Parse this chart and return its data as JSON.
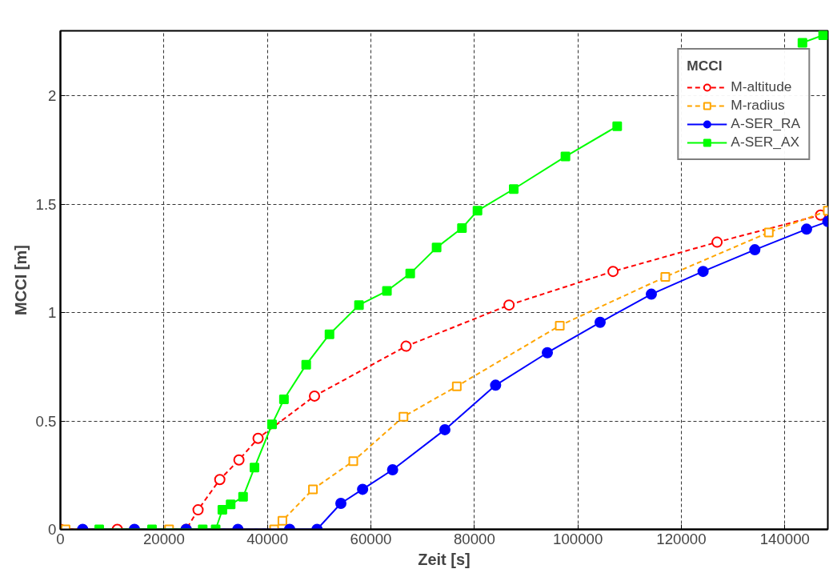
{
  "chart_data": {
    "type": "line",
    "xlabel": "Zeit [s]",
    "ylabel": "MCCI [m]",
    "legend_title": "MCCI",
    "xlim": [
      0,
      148300
    ],
    "ylim": [
      0,
      2.3
    ],
    "xticks": [
      0,
      20000,
      40000,
      60000,
      80000,
      100000,
      120000,
      140000
    ],
    "yticks": [
      0,
      0.5,
      1,
      1.5,
      2
    ],
    "grid": true,
    "legend": "top right",
    "series": [
      {
        "name": "M-altitude",
        "color": "#ff0000",
        "marker": "circle",
        "line_style": "dashed",
        "x": [
          0,
          11000,
          24300,
          26600,
          30800,
          34500,
          38200,
          49100,
          66800,
          86700,
          106800,
          126900,
          146900
        ],
        "values": [
          0,
          0,
          0,
          0.09,
          0.23,
          0.32,
          0.42,
          0.615,
          0.845,
          1.035,
          1.19,
          1.325,
          1.45
        ]
      },
      {
        "name": "M-radius",
        "color": "#ffa500",
        "marker": "square",
        "line_style": "dashed",
        "x": [
          1000,
          21000,
          41300,
          42900,
          48800,
          56600,
          66300,
          76600,
          96500,
          116900,
          136900,
          148300
        ],
        "values": [
          0,
          0,
          0,
          0.04,
          0.185,
          0.315,
          0.52,
          0.66,
          0.94,
          1.165,
          1.37,
          1.47
        ]
      },
      {
        "name": "A-SER_RA",
        "color": "#0000ff",
        "marker": "circle",
        "line_style": "solid",
        "x": [
          4300,
          14300,
          24300,
          34300,
          44300,
          49600,
          54200,
          58400,
          64200,
          74300,
          84100,
          94100,
          104300,
          114200,
          124200,
          134200,
          144200,
          148300
        ],
        "values": [
          0,
          0,
          0,
          0,
          0,
          0,
          0.12,
          0.185,
          0.275,
          0.46,
          0.665,
          0.815,
          0.955,
          1.085,
          1.19,
          1.29,
          1.385,
          1.42
        ]
      },
      {
        "name": "A-SER_AX",
        "color": "#00ff00",
        "marker": "square",
        "line_style": "solid",
        "x": [
          7500,
          17700,
          27500,
          30000,
          31300,
          32900,
          35300,
          37500,
          40900,
          43200,
          47500,
          52000,
          57700,
          63100,
          67600,
          72700,
          77600,
          80600,
          87600,
          97600,
          107600,
          126700,
          143400,
          147400
        ],
        "values": [
          0,
          0,
          0,
          0,
          0.09,
          0.115,
          0.15,
          0.285,
          0.485,
          0.6,
          0.76,
          0.9,
          1.035,
          1.1,
          1.18,
          1.3,
          1.39,
          1.47,
          1.57,
          1.72,
          1.86,
          null,
          2.245,
          2.28
        ]
      }
    ]
  }
}
